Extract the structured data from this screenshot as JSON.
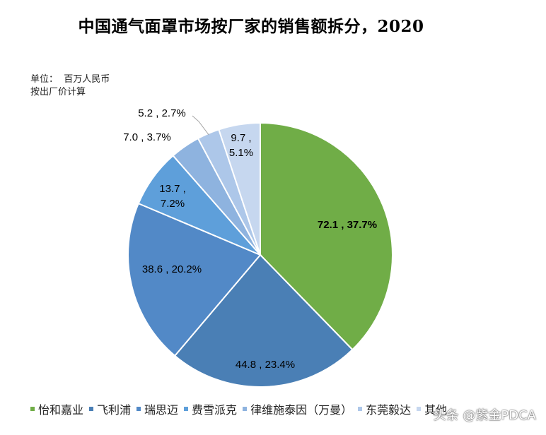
{
  "title": "中国通气面罩市场按厂家的销售额拆分，2020",
  "unit_lines": [
    "单位：  百万人民币",
    "按出厂价计算"
  ],
  "chart_data": {
    "type": "pie",
    "title": "中国通气面罩市场按厂家的销售额拆分，2020",
    "unit": "百万人民币",
    "slices": [
      {
        "name": "怡和嘉业",
        "value": 72.1,
        "percent": 37.7,
        "label": "72.1 , 37.7%",
        "color": "#70ad47"
      },
      {
        "name": "飞利浦",
        "value": 44.8,
        "percent": 23.4,
        "label": "44.8 , 23.4%",
        "color": "#4a7fb5"
      },
      {
        "name": "瑞思迈",
        "value": 38.6,
        "percent": 20.2,
        "label": "38.6 , 20.2%",
        "color": "#5289c7"
      },
      {
        "name": "费雪派克",
        "value": 13.7,
        "percent": 7.2,
        "label": "13.7 ,\n7.2%",
        "color": "#5e9fda"
      },
      {
        "name": "律维施泰因（万曼）",
        "value": 7.0,
        "percent": 3.7,
        "label": "7.0 , 3.7%",
        "color": "#8eb3df"
      },
      {
        "name": "东莞毅达",
        "value": 5.2,
        "percent": 2.7,
        "label": "5.2 , 2.7%",
        "color": "#adc7e9"
      },
      {
        "name": "其他",
        "value": 9.7,
        "percent": 5.1,
        "label": "9.7 ,\n5.1%",
        "color": "#c6d7ef"
      }
    ],
    "legend_position": "bottom"
  },
  "watermark": "头条 @紫金PDCA"
}
